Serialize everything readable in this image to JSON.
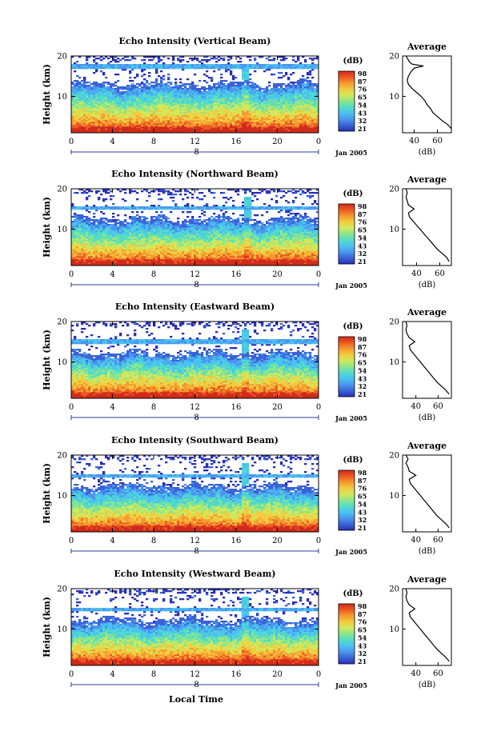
{
  "figure": {
    "xlabel": "Local Time",
    "date_label": "Jan 2005",
    "colorbar_unit": "(dB)",
    "average_title": "Average",
    "average_xlabel": "(dB)",
    "colormap": [
      "#2a2fb8",
      "#3a62d8",
      "#4b96ee",
      "#49c3f0",
      "#52dcc8",
      "#8de68a",
      "#d2e85c",
      "#f2cc3e",
      "#f59a30",
      "#ec5a22",
      "#d12a1a"
    ]
  },
  "chart_data": [
    {
      "type": "heatmap",
      "title": "Echo Intensity (Vertical Beam)",
      "ylabel": "Height (km)",
      "xlim": [
        0,
        24
      ],
      "ylim": [
        1,
        20
      ],
      "x_ticks": [
        "0",
        "4",
        "8",
        "12",
        "16",
        "20",
        "0"
      ],
      "x_marker": "8",
      "y_ticks": [
        10,
        20
      ],
      "colorbar": {
        "ticks": [
          98,
          87,
          76,
          65,
          54,
          43,
          32,
          21
        ]
      },
      "features": {
        "tropopause_km": 12.2,
        "updraft_hour": 16.9,
        "strong_layer_km": 17.4
      },
      "average_profile": {
        "xlim": [
          30,
          72
        ],
        "x_ticks": [
          40,
          60
        ],
        "height_km": [
          2,
          3,
          4,
          5,
          6,
          7,
          8,
          9,
          10,
          11,
          12,
          13,
          14,
          15,
          16,
          17,
          17.5,
          18,
          18.5,
          19,
          20
        ],
        "db": [
          72,
          69,
          64,
          60,
          56,
          54,
          51,
          49,
          46,
          42,
          38,
          35,
          34,
          35,
          37,
          40,
          48,
          38,
          36,
          35,
          33
        ]
      }
    },
    {
      "type": "heatmap",
      "title": "Echo Intensity (Northward Beam)",
      "ylabel": "Height (km)",
      "xlim": [
        0,
        24
      ],
      "ylim": [
        1,
        20
      ],
      "x_ticks": [
        "0",
        "4",
        "8",
        "12",
        "16",
        "20",
        "0"
      ],
      "x_marker": "8",
      "y_ticks": [
        10,
        20
      ],
      "colorbar": {
        "ticks": [
          98,
          87,
          76,
          65,
          54,
          43,
          32,
          21
        ]
      },
      "features": {
        "tropopause_km": 11.6,
        "updraft_hour": 17.2,
        "strong_layer_km": 15.3
      },
      "average_profile": {
        "xlim": [
          28,
          70
        ],
        "x_ticks": [
          40,
          60
        ],
        "height_km": [
          2,
          3,
          4,
          5,
          6,
          7,
          8,
          9,
          10,
          11,
          12,
          13,
          14,
          15,
          16,
          17,
          18,
          19,
          20
        ],
        "db": [
          68,
          66,
          62,
          58,
          55,
          52,
          49,
          46,
          43,
          40,
          37,
          34,
          33,
          38,
          33,
          32,
          31,
          32,
          31
        ]
      }
    },
    {
      "type": "heatmap",
      "title": "Echo Intensity (Eastward Beam)",
      "ylabel": "Height (km)",
      "xlim": [
        0,
        24
      ],
      "ylim": [
        1,
        20
      ],
      "x_ticks": [
        "0",
        "4",
        "8",
        "12",
        "16",
        "20",
        "0"
      ],
      "x_marker": "8",
      "y_ticks": [
        10,
        20
      ],
      "colorbar": {
        "ticks": [
          98,
          87,
          76,
          65,
          54,
          43,
          32,
          21
        ]
      },
      "features": {
        "tropopause_km": 11.3,
        "updraft_hour": 16.8,
        "strong_layer_km": 15.0
      },
      "average_profile": {
        "xlim": [
          28,
          72
        ],
        "x_ticks": [
          40,
          60
        ],
        "height_km": [
          2,
          3,
          4,
          5,
          6,
          7,
          8,
          9,
          10,
          11,
          12,
          13,
          14,
          15,
          16,
          17,
          18,
          19,
          20
        ],
        "db": [
          70,
          67,
          63,
          59,
          56,
          53,
          50,
          47,
          44,
          41,
          38,
          35,
          34,
          39,
          34,
          32,
          31,
          32,
          31
        ]
      }
    },
    {
      "type": "heatmap",
      "title": "Echo Intensity (Southward Beam)",
      "ylabel": "Height (km)",
      "xlim": [
        0,
        24
      ],
      "ylim": [
        1,
        20
      ],
      "x_ticks": [
        "0",
        "4",
        "8",
        "12",
        "16",
        "20",
        "0"
      ],
      "x_marker": "8",
      "y_ticks": [
        10,
        20
      ],
      "colorbar": {
        "ticks": [
          98,
          87,
          76,
          65,
          54,
          43,
          32,
          21
        ]
      },
      "features": {
        "tropopause_km": 11.4,
        "updraft_hour": 16.9,
        "strong_layer_km": 14.8
      },
      "average_profile": {
        "xlim": [
          28,
          72
        ],
        "x_ticks": [
          40,
          60
        ],
        "height_km": [
          2,
          3,
          4,
          5,
          6,
          7,
          8,
          9,
          10,
          11,
          12,
          13,
          14,
          15,
          16,
          17,
          18,
          19,
          20
        ],
        "db": [
          70,
          67,
          63,
          59,
          56,
          53,
          50,
          47,
          44,
          41,
          38,
          35,
          34,
          40,
          34,
          33,
          31,
          33,
          31
        ]
      }
    },
    {
      "type": "heatmap",
      "title": "Echo Intensity (Westward Beam)",
      "ylabel": "Height (km)",
      "xlim": [
        0,
        24
      ],
      "ylim": [
        1,
        20
      ],
      "x_ticks": [
        "0",
        "4",
        "8",
        "12",
        "16",
        "20",
        "0"
      ],
      "x_marker": "8",
      "y_ticks": [
        10,
        20
      ],
      "colorbar": {
        "ticks": [
          98,
          87,
          76,
          65,
          54,
          43,
          32,
          21
        ]
      },
      "features": {
        "tropopause_km": 11.3,
        "updraft_hour": 16.9,
        "strong_layer_km": 14.9
      },
      "average_profile": {
        "xlim": [
          28,
          72
        ],
        "x_ticks": [
          40,
          60
        ],
        "height_km": [
          2,
          3,
          4,
          5,
          6,
          7,
          8,
          9,
          10,
          11,
          12,
          13,
          14,
          15,
          16,
          17,
          18,
          19,
          20
        ],
        "db": [
          70,
          67,
          63,
          59,
          56,
          53,
          50,
          47,
          44,
          41,
          38,
          35,
          34,
          39,
          34,
          32,
          31,
          32,
          31
        ]
      }
    }
  ]
}
